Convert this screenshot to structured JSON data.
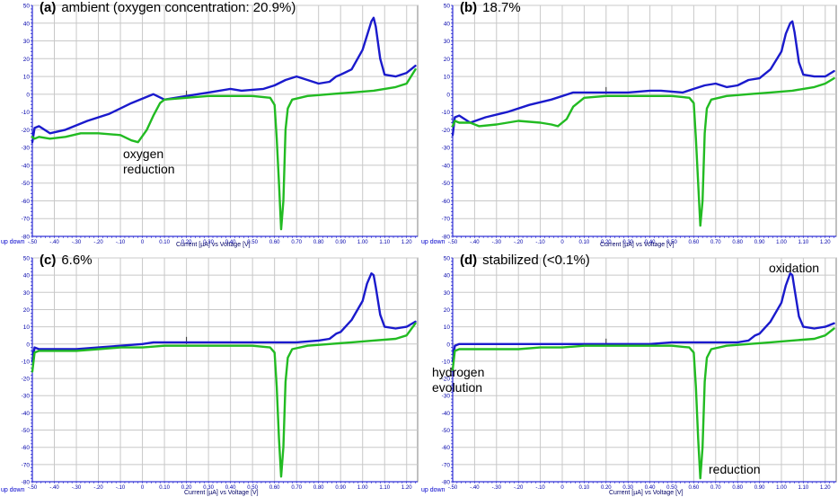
{
  "colors": {
    "blue_trace": "#1a1acc",
    "green_trace": "#22bb22",
    "grid": "#c8c8c8",
    "axis_frame": "#0000cc",
    "tick_text": "#0000aa"
  },
  "common": {
    "xlabel": "Current [µA] vs Voltage [V]",
    "updown": "up down"
  },
  "chart_data": [
    {
      "type": "line",
      "label": "(a)",
      "title": "ambient (oxygen concentration: 20.9%)",
      "xlabel": "Current [µA] vs Voltage [V]",
      "xlim": [
        -0.5,
        1.25
      ],
      "ylim": [
        -80,
        50
      ],
      "grid": true,
      "x_ticks": [
        "-.50",
        "-.40",
        "-.30",
        "-.20",
        "-.10",
        "0",
        "0.10",
        "0.20",
        "0.30",
        "0.40",
        "0.50",
        "0.60",
        "0.70",
        "0.80",
        "0.90",
        "1.00",
        "1.10",
        "1.20"
      ],
      "y_ticks": [
        "50",
        "40",
        "30",
        "20",
        "10",
        "0",
        "-10",
        "-20",
        "-30",
        "-40",
        "-50",
        "-60",
        "-70",
        "-80"
      ],
      "annotations": [
        {
          "text": "oxygen\nreduction",
          "x": -0.12,
          "y": -32
        }
      ],
      "series": [
        {
          "x": [
            -0.5,
            -0.49,
            -0.47,
            -0.42,
            -0.35,
            -0.25,
            -0.15,
            -0.05,
            0.05,
            0.1,
            0.2,
            0.3,
            0.4,
            0.45,
            0.55,
            0.6,
            0.65,
            0.7,
            0.75,
            0.8,
            0.85,
            0.88,
            0.9,
            0.95,
            1.0,
            1.02,
            1.04,
            1.05,
            1.06,
            1.08,
            1.1,
            1.15,
            1.2,
            1.24
          ],
          "y": [
            -27,
            -19,
            -18,
            -22,
            -20,
            -15,
            -11,
            -5,
            0,
            -3,
            -1,
            1,
            3,
            2,
            3,
            5,
            8,
            10,
            8,
            6,
            7,
            10,
            11,
            14,
            25,
            33,
            41,
            43,
            38,
            20,
            11,
            10,
            12,
            16
          ]
        },
        {
          "x": [
            -0.5,
            -0.49,
            -0.47,
            -0.42,
            -0.35,
            -0.28,
            -0.2,
            -0.1,
            -0.05,
            -0.02,
            0.02,
            0.05,
            0.08,
            0.1,
            0.2,
            0.3,
            0.4,
            0.5,
            0.58,
            0.6,
            0.61,
            0.62,
            0.63,
            0.64,
            0.65,
            0.66,
            0.68,
            0.75,
            0.85,
            0.95,
            1.05,
            1.15,
            1.2,
            1.24
          ],
          "y": [
            -24,
            -25,
            -24,
            -25,
            -24,
            -22,
            -22,
            -23,
            -26,
            -27,
            -20,
            -12,
            -5,
            -3,
            -2,
            -1,
            -1,
            -1,
            -2,
            -6,
            -25,
            -50,
            -76,
            -60,
            -20,
            -8,
            -3,
            -1,
            0,
            1,
            2,
            4,
            6,
            14
          ]
        }
      ]
    },
    {
      "type": "line",
      "label": "(b)",
      "title": "18.7%",
      "xlabel": "Current [µA] vs Voltage [V]",
      "xlim": [
        -0.5,
        1.25
      ],
      "ylim": [
        -80,
        50
      ],
      "grid": true,
      "x_ticks": [
        "-.50",
        "-.40",
        "-.30",
        "-.20",
        "-.10",
        "0",
        "0.10",
        "0.20",
        "0.30",
        "0.40",
        "0.50",
        "0.60",
        "0.70",
        "0.80",
        "0.90",
        "1.00",
        "1.10",
        "1.20"
      ],
      "y_ticks": [
        "50",
        "40",
        "30",
        "20",
        "10",
        "0",
        "-10",
        "-20",
        "-30",
        "-40",
        "-50",
        "-60",
        "-70",
        "-80"
      ],
      "annotations": [],
      "series": [
        {
          "x": [
            -0.5,
            -0.49,
            -0.47,
            -0.42,
            -0.35,
            -0.25,
            -0.15,
            -0.05,
            0.05,
            0.1,
            0.2,
            0.3,
            0.4,
            0.45,
            0.55,
            0.6,
            0.65,
            0.7,
            0.75,
            0.8,
            0.85,
            0.9,
            0.95,
            1.0,
            1.02,
            1.04,
            1.05,
            1.06,
            1.08,
            1.1,
            1.15,
            1.2,
            1.24
          ],
          "y": [
            -23,
            -13,
            -12,
            -16,
            -13,
            -10,
            -6,
            -3,
            1,
            1,
            1,
            1,
            2,
            2,
            1,
            3,
            5,
            6,
            4,
            5,
            8,
            9,
            14,
            24,
            34,
            40,
            41,
            35,
            18,
            11,
            10,
            10,
            13
          ]
        },
        {
          "x": [
            -0.5,
            -0.49,
            -0.47,
            -0.42,
            -0.38,
            -0.3,
            -0.2,
            -0.1,
            -0.05,
            -0.02,
            0.02,
            0.05,
            0.1,
            0.2,
            0.3,
            0.4,
            0.5,
            0.58,
            0.6,
            0.61,
            0.62,
            0.63,
            0.64,
            0.65,
            0.66,
            0.68,
            0.75,
            0.85,
            0.95,
            1.05,
            1.15,
            1.2,
            1.24
          ],
          "y": [
            -18,
            -15,
            -16,
            -16,
            -18,
            -17,
            -15,
            -16,
            -17,
            -18,
            -14,
            -7,
            -2,
            -1,
            -1,
            -1,
            -1,
            -2,
            -5,
            -25,
            -50,
            -74,
            -60,
            -22,
            -8,
            -3,
            -1,
            0,
            1,
            2,
            4,
            6,
            9
          ]
        }
      ]
    },
    {
      "type": "line",
      "label": "(c)",
      "title": "6.6%",
      "xlabel": "Current [µA] vs Voltage [V]",
      "xlim": [
        -0.5,
        1.25
      ],
      "ylim": [
        -80,
        50
      ],
      "grid": true,
      "x_ticks": [
        "-.50",
        "-.40",
        "-.30",
        "-.20",
        "-.10",
        "0",
        "0.10",
        "0.20",
        "0.30",
        "0.40",
        "0.50",
        "0.60",
        "0.70",
        "0.80",
        "0.90",
        "1.00",
        "1.10",
        "1.20"
      ],
      "y_ticks": [
        "50",
        "40",
        "30",
        "20",
        "10",
        "0",
        "-10",
        "-20",
        "-30",
        "-40",
        "-50",
        "-60",
        "-70",
        "-80"
      ],
      "annotations": [],
      "series": [
        {
          "x": [
            -0.5,
            -0.49,
            -0.47,
            -0.42,
            -0.3,
            -0.2,
            -0.1,
            0,
            0.05,
            0.1,
            0.2,
            0.3,
            0.4,
            0.5,
            0.6,
            0.7,
            0.8,
            0.85,
            0.88,
            0.9,
            0.95,
            1.0,
            1.02,
            1.04,
            1.05,
            1.06,
            1.08,
            1.1,
            1.15,
            1.2,
            1.24
          ],
          "y": [
            -10,
            -2,
            -3,
            -3,
            -3,
            -2,
            -1,
            0,
            1,
            1,
            1,
            1,
            1,
            1,
            1,
            1,
            2,
            3,
            6,
            7,
            14,
            25,
            35,
            41,
            40,
            33,
            17,
            10,
            9,
            10,
            13
          ]
        },
        {
          "x": [
            -0.5,
            -0.49,
            -0.47,
            -0.42,
            -0.3,
            -0.2,
            -0.1,
            0,
            0.1,
            0.2,
            0.3,
            0.4,
            0.5,
            0.58,
            0.6,
            0.61,
            0.62,
            0.63,
            0.64,
            0.65,
            0.66,
            0.68,
            0.75,
            0.85,
            0.95,
            1.05,
            1.15,
            1.2,
            1.24
          ],
          "y": [
            -16,
            -5,
            -4,
            -4,
            -4,
            -3,
            -2,
            -2,
            -1,
            -1,
            -1,
            -1,
            -1,
            -2,
            -5,
            -25,
            -55,
            -77,
            -60,
            -22,
            -8,
            -3,
            -1,
            0,
            1,
            2,
            3,
            5,
            12
          ]
        }
      ]
    },
    {
      "type": "line",
      "label": "(d)",
      "title": "stabilized (<0.1%)",
      "xlabel": "Current [µA] vs Voltage [V]",
      "xlim": [
        -0.5,
        1.25
      ],
      "ylim": [
        -80,
        50
      ],
      "grid": true,
      "x_ticks": [
        "-.50",
        "-.40",
        "-.30",
        "-.20",
        "-.10",
        "0",
        "0.10",
        "0.20",
        "0.30",
        "0.40",
        "0.50",
        "0.60",
        "0.70",
        "0.80",
        "0.90",
        "1.00",
        "1.10",
        "1.20"
      ],
      "y_ticks": [
        "50",
        "40",
        "30",
        "20",
        "10",
        "0",
        "-10",
        "-20",
        "-30",
        "-40",
        "-50",
        "-60",
        "-70",
        "-80"
      ],
      "annotations": [
        {
          "text": "hydrogen\nevolution",
          "x": -0.49,
          "y": -15
        },
        {
          "text": "reduction",
          "x": 0.64,
          "y": -77
        },
        {
          "text": "oxidation",
          "x": 1.0,
          "y": 45
        }
      ],
      "series": [
        {
          "x": [
            -0.5,
            -0.49,
            -0.47,
            -0.42,
            -0.3,
            -0.2,
            -0.1,
            0,
            0.1,
            0.2,
            0.3,
            0.4,
            0.5,
            0.6,
            0.7,
            0.8,
            0.85,
            0.88,
            0.9,
            0.95,
            1.0,
            1.02,
            1.04,
            1.05,
            1.06,
            1.08,
            1.1,
            1.15,
            1.2,
            1.24
          ],
          "y": [
            -10,
            -1,
            0,
            0,
            0,
            0,
            0,
            0,
            0,
            0,
            0,
            0,
            1,
            1,
            1,
            1,
            2,
            5,
            6,
            13,
            24,
            34,
            41,
            40,
            32,
            16,
            10,
            9,
            10,
            12
          ]
        },
        {
          "x": [
            -0.5,
            -0.49,
            -0.47,
            -0.42,
            -0.3,
            -0.2,
            -0.1,
            0,
            0.1,
            0.2,
            0.3,
            0.4,
            0.5,
            0.58,
            0.6,
            0.61,
            0.62,
            0.63,
            0.64,
            0.65,
            0.66,
            0.68,
            0.75,
            0.85,
            0.95,
            1.05,
            1.15,
            1.2,
            1.24
          ],
          "y": [
            -15,
            -4,
            -3,
            -3,
            -3,
            -3,
            -2,
            -2,
            -1,
            -1,
            -1,
            -1,
            -1,
            -2,
            -5,
            -25,
            -55,
            -78,
            -60,
            -22,
            -8,
            -3,
            -1,
            0,
            1,
            2,
            3,
            5,
            9
          ]
        }
      ]
    }
  ]
}
